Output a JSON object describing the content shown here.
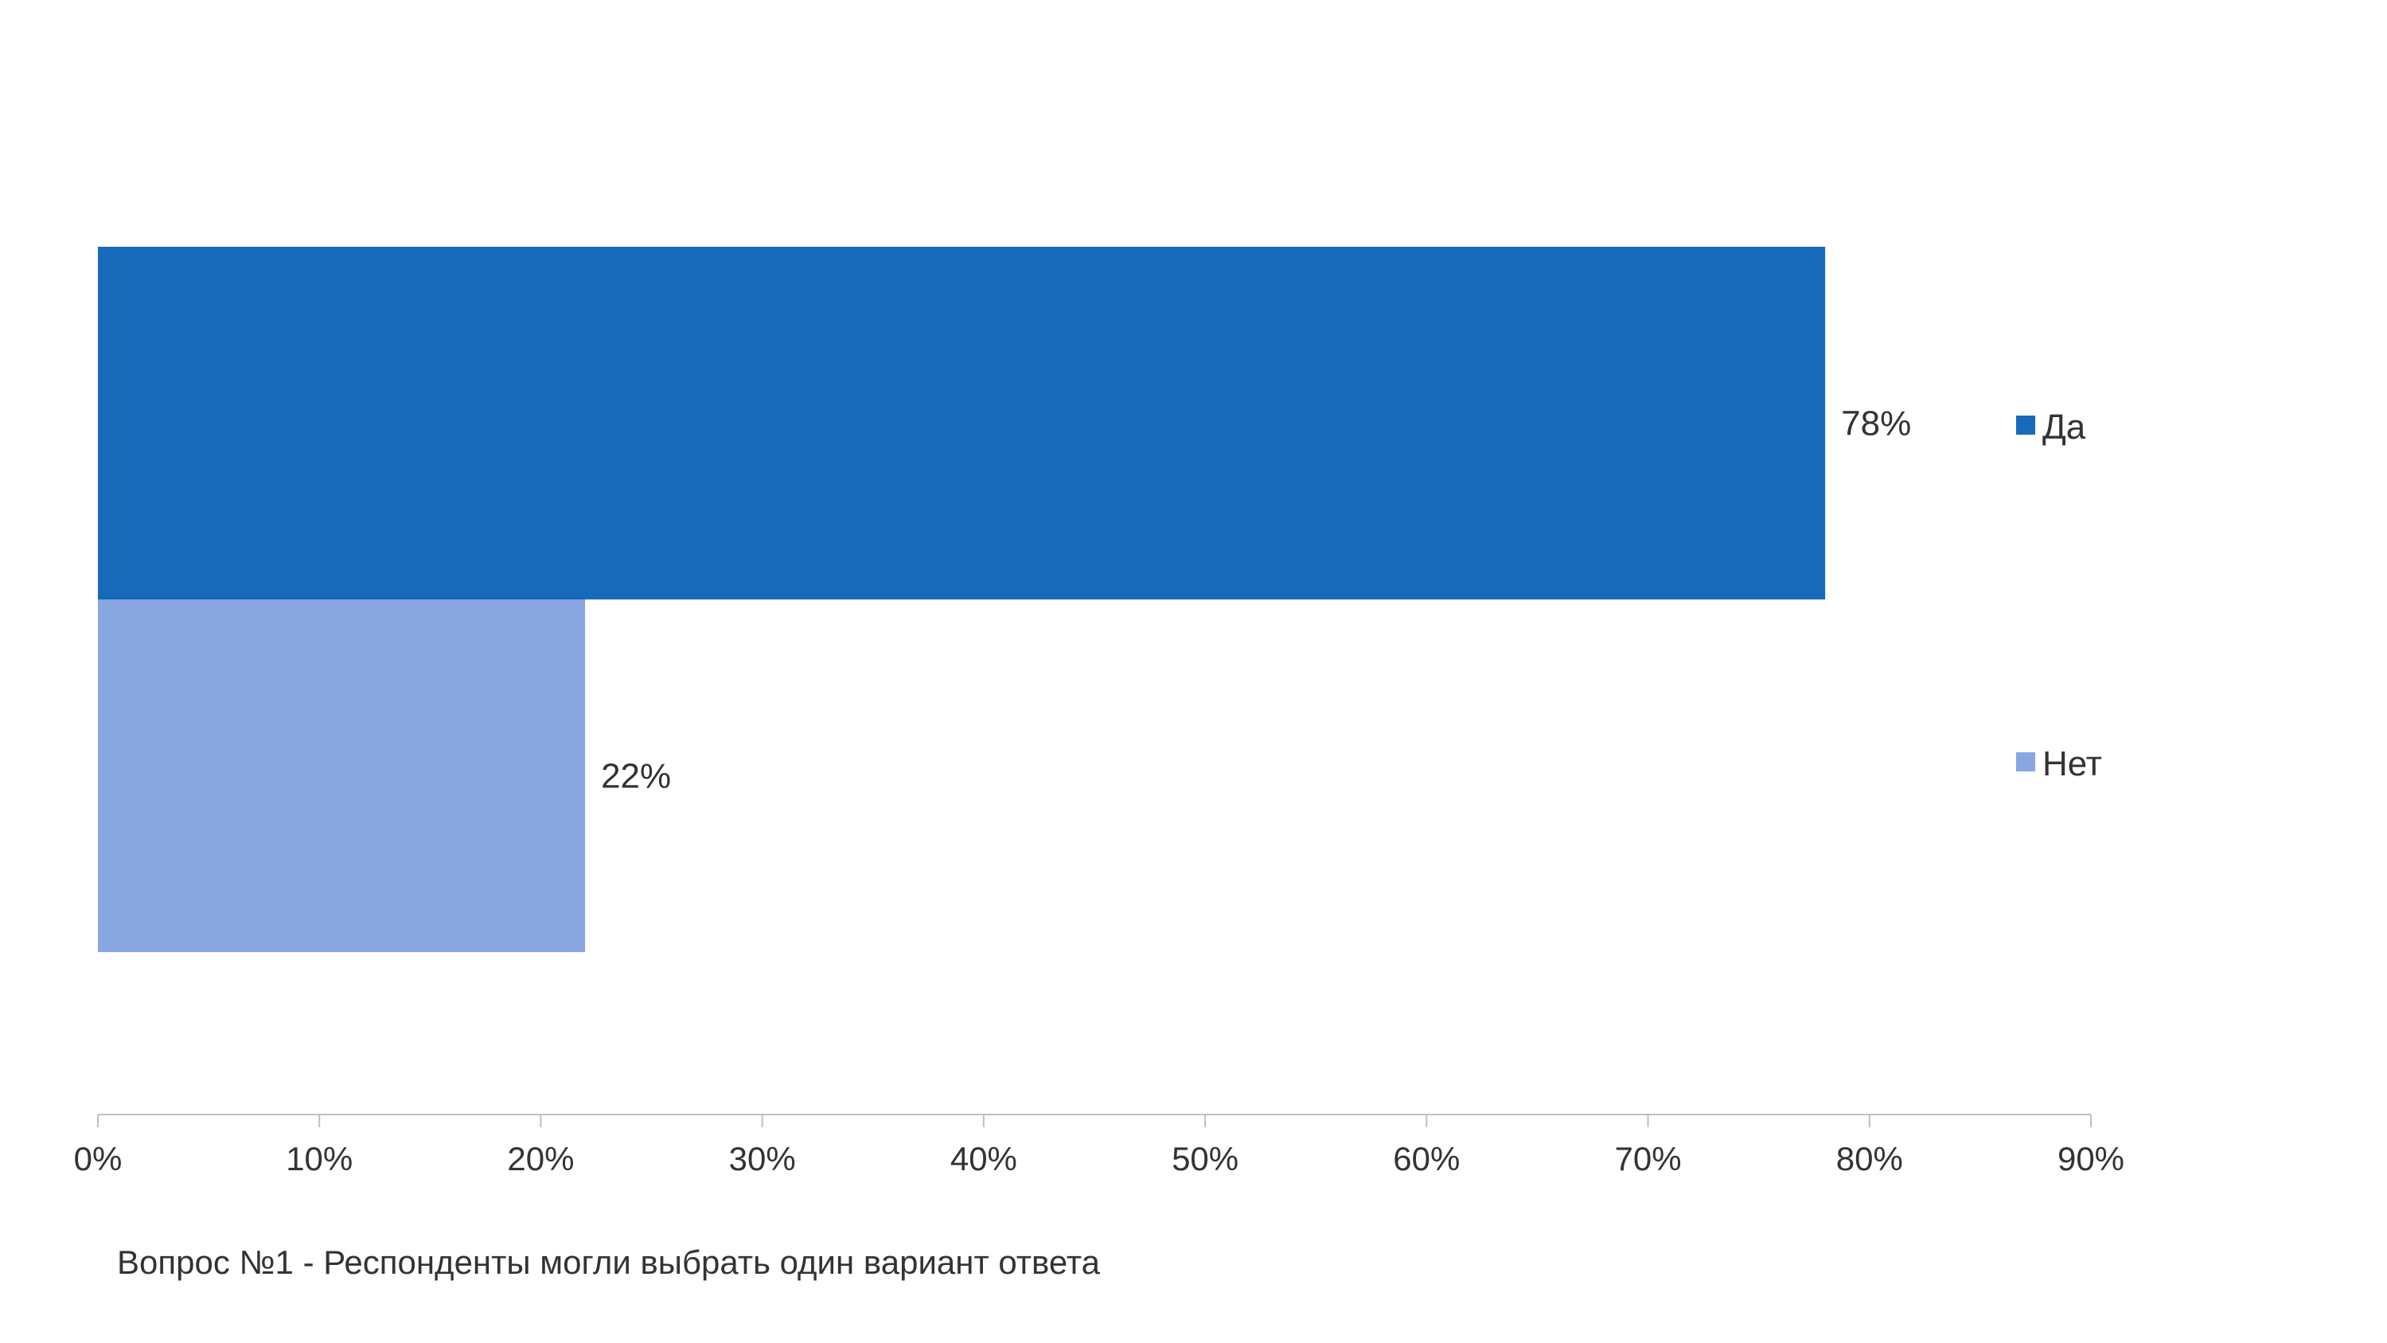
{
  "chart_data": {
    "type": "bar",
    "orientation": "horizontal",
    "categories": [
      "Да",
      "Нет"
    ],
    "values": [
      78,
      22
    ],
    "data_labels": [
      "78%",
      "22%"
    ],
    "colors": [
      "#1769BA",
      "#88A6DF"
    ],
    "xlim": [
      0,
      90
    ],
    "x_ticks": [
      0,
      10,
      20,
      30,
      40,
      50,
      60,
      70,
      80,
      90
    ],
    "x_tick_labels": [
      "0%",
      "10%",
      "20%",
      "30%",
      "40%",
      "50%",
      "60%",
      "70%",
      "80%",
      "90%"
    ],
    "legend": {
      "placement": "right",
      "entries": [
        {
          "label": "Да",
          "color": "#1769BA"
        },
        {
          "label": "Нет",
          "color": "#88A6DF"
        }
      ]
    },
    "grid": false,
    "axis_color": "#BFBFBF"
  },
  "footnote": "Вопрос №1 - Респонденты могли выбрать один вариант ответа"
}
